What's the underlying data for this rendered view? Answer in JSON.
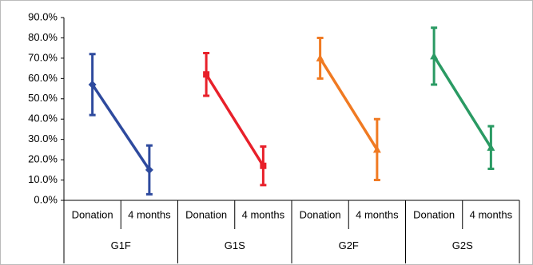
{
  "chart_data": {
    "type": "line",
    "categories": [
      "Donation",
      "4 months",
      "Donation",
      "4 months",
      "Donation",
      "4 months",
      "Donation",
      "4 months"
    ],
    "groups": [
      "G1F",
      "G1S",
      "G2F",
      "G2S"
    ],
    "series": [
      {
        "color": "#2e4a9e",
        "marker": "diamond",
        "values": [
          57,
          15,
          null,
          null,
          null,
          null,
          null,
          null
        ],
        "errors": [
          15,
          12,
          null,
          null,
          null,
          null,
          null,
          null
        ]
      },
      {
        "color": "#e8202a",
        "marker": "square",
        "values": [
          null,
          null,
          62,
          17,
          null,
          null,
          null,
          null
        ],
        "errors": [
          null,
          null,
          10.5,
          9.5,
          null,
          null,
          null,
          null
        ]
      },
      {
        "color": "#f07a22",
        "marker": "triangle",
        "values": [
          null,
          null,
          null,
          null,
          70,
          25,
          null,
          null
        ],
        "errors": [
          null,
          null,
          null,
          null,
          10,
          15,
          null,
          null
        ]
      },
      {
        "color": "#2a9a63",
        "marker": "triangle",
        "values": [
          null,
          null,
          null,
          null,
          null,
          null,
          71,
          26
        ],
        "errors": [
          null,
          null,
          null,
          null,
          null,
          null,
          14,
          10.5
        ]
      }
    ],
    "ylim": [
      0,
      90
    ],
    "yticks": [
      {
        "value": 0,
        "label": "0.0%"
      },
      {
        "value": 10,
        "label": "10.0%"
      },
      {
        "value": 20,
        "label": "20.0%"
      },
      {
        "value": 30,
        "label": "30.0%"
      },
      {
        "value": 40,
        "label": "40.0%"
      },
      {
        "value": 50,
        "label": "50.0%"
      },
      {
        "value": 60,
        "label": "60.0%"
      },
      {
        "value": 70,
        "label": "70.0%"
      },
      {
        "value": 80,
        "label": "80.0%"
      },
      {
        "value": 90,
        "label": "90.0%"
      }
    ],
    "grid": false
  }
}
